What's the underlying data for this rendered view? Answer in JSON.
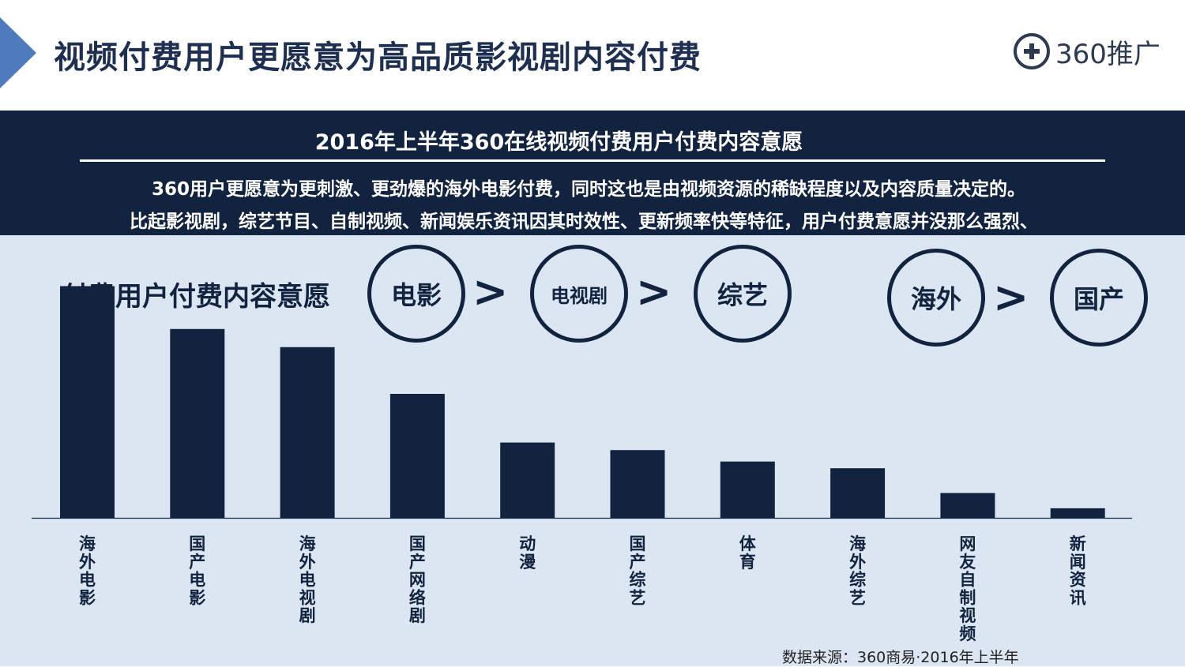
{
  "header": {
    "title": "视频付费用户更愿意为高品质影视剧内容付费",
    "logo_text": "360推广",
    "logo_icon": "plus-circle-icon"
  },
  "banner": {
    "title": "2016年上半年360在线视频付费用户付费内容意愿",
    "line1": "360用户更愿意为更刺激、更劲爆的海外电影付费，同时这也是由视频资源的稀缺程度以及内容质量决定的。",
    "line2": "比起影视剧，综艺节目、自制视频、新闻娱乐资讯因其时效性、更新频率快等特征，用户付费意愿并没那么强烈、"
  },
  "ranking": {
    "label": "付费用户付费内容意愿",
    "group1": [
      "电影",
      "电视剧",
      "综艺"
    ],
    "group2": [
      "海外",
      "国产"
    ],
    "separator": ">"
  },
  "chart_data": {
    "type": "bar",
    "categories": [
      "海外电影",
      "国产电影",
      "海外电视剧",
      "国产网络剧",
      "动漫",
      "国产综艺",
      "体育",
      "海外综艺",
      "网友自制视频",
      "新闻资讯"
    ],
    "values": [
      243,
      198,
      179,
      130,
      79,
      71,
      59,
      52,
      26,
      10
    ],
    "ylim": [
      0,
      250
    ],
    "grid": false,
    "title": "",
    "xlabel": "",
    "ylabel": ""
  },
  "source": "数据来源：360商易·2016年上半年",
  "colors": {
    "navy": "#12233f",
    "background": "#dce6f2",
    "accent_arrow": "#4f7bbd"
  }
}
